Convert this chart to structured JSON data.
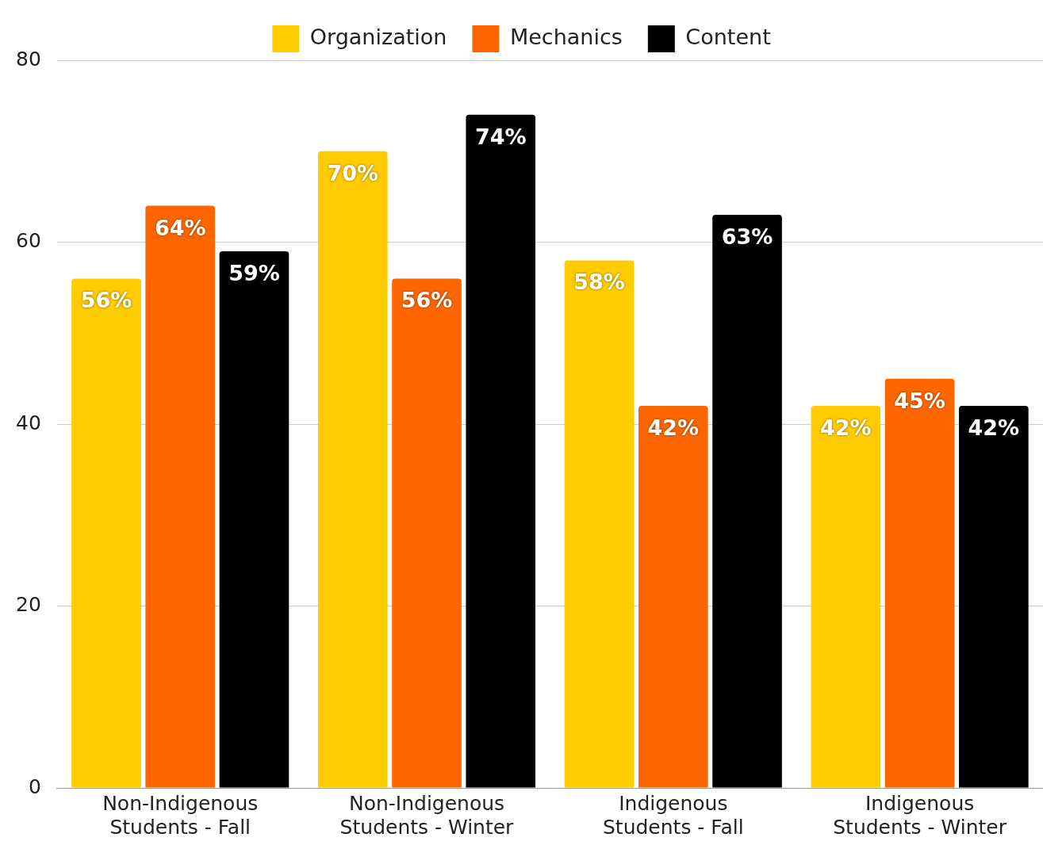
{
  "chart_data": {
    "type": "bar",
    "categories": [
      "Non-Indigenous Students - Fall",
      "Non-Indigenous Students - Winter",
      "Indigenous Students - Fall",
      "Indigenous Students - Winter"
    ],
    "series": [
      {
        "name": "Organization",
        "color": "#ffcc00",
        "values": [
          56,
          70,
          58,
          42
        ],
        "value_labels": [
          "56%",
          "70%",
          "58%",
          "42%"
        ]
      },
      {
        "name": "Mechanics",
        "color": "#ff6600",
        "values": [
          64,
          56,
          42,
          45
        ],
        "value_labels": [
          "64%",
          "56%",
          "42%",
          "45%"
        ]
      },
      {
        "name": "Content",
        "color": "#000000",
        "values": [
          59,
          74,
          63,
          42
        ],
        "value_labels": [
          "59%",
          "74%",
          "63%",
          "42%"
        ]
      }
    ],
    "ylim": [
      0,
      80
    ],
    "yticks": [
      0,
      20,
      40,
      60,
      80
    ],
    "grid": "y",
    "legend": "top"
  }
}
